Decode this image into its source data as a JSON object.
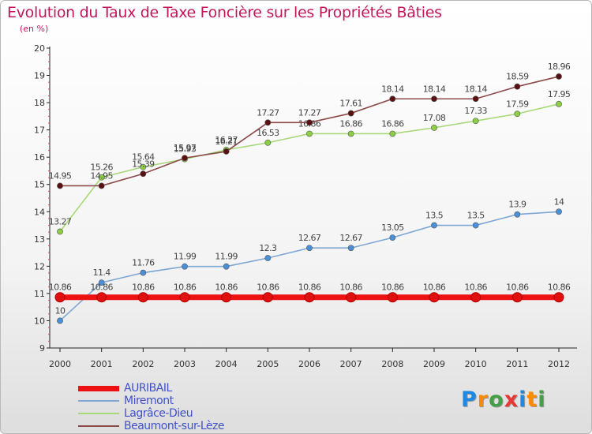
{
  "title": "Evolution du Taux de Taxe Foncière sur les Propriétés Bâties",
  "subtitle": "(en %)",
  "brand": {
    "letters": [
      "P",
      "r",
      "o",
      "x",
      "i",
      "t",
      "i"
    ],
    "colors": [
      "#1e88e5",
      "#fb8c00",
      "#43a047",
      "#e53935",
      "#1e88e5",
      "#fb8c00",
      "#43a047"
    ]
  },
  "chart_data": {
    "type": "line",
    "x": [
      2000,
      2001,
      2002,
      2003,
      2004,
      2005,
      2006,
      2007,
      2008,
      2009,
      2010,
      2011,
      2012
    ],
    "ylim": [
      9,
      20
    ],
    "yticks": [
      9,
      10,
      11,
      12,
      13,
      14,
      15,
      16,
      17,
      18,
      19,
      20
    ],
    "grid": false,
    "legend": "bottom-left",
    "series": [
      {
        "name": "AURIBAIL",
        "color": "#ee1111",
        "values": [
          10.86,
          10.86,
          10.86,
          10.86,
          10.86,
          10.86,
          10.86,
          10.86,
          10.86,
          10.86,
          10.86,
          10.86,
          10.86
        ],
        "labels": [
          "10.86",
          "10.86",
          "10.86",
          "10.86",
          "10.86",
          "10.86",
          "10.86",
          "10.86",
          "10.86",
          "10.86",
          "10.86",
          "10.86",
          "10.86"
        ]
      },
      {
        "name": "Miremont",
        "color": "#7ea6d4",
        "values": [
          10,
          11.4,
          11.76,
          11.99,
          11.99,
          12.3,
          12.67,
          12.67,
          13.05,
          13.5,
          13.5,
          13.9,
          14
        ],
        "labels": [
          "10",
          "11.4",
          "11.76",
          "11.99",
          "11.99",
          "12.3",
          "12.67",
          "12.67",
          "13.05",
          "13.5",
          "13.5",
          "13.9",
          "14"
        ]
      },
      {
        "name": "Lagrâce-Dieu",
        "color": "#a8d878",
        "values": [
          13.27,
          15.26,
          15.64,
          15.93,
          16.27,
          16.53,
          16.86,
          16.86,
          16.86,
          17.08,
          17.33,
          17.59,
          17.95
        ],
        "labels": [
          "13.27",
          "15.26",
          "15.64",
          "15.93",
          "16.27",
          "16.53",
          "16.86",
          "16.86",
          "16.86",
          "17.08",
          "17.33",
          "17.59",
          "17.95"
        ]
      },
      {
        "name": "Beaumont-sur-Lèze",
        "color": "#8c4a4a",
        "values": [
          14.95,
          14.95,
          15.39,
          15.97,
          16.21,
          17.27,
          17.27,
          17.61,
          18.14,
          18.14,
          18.14,
          18.59,
          18.96
        ],
        "labels": [
          "14.95",
          "14.95",
          "15.39",
          "15.97",
          "16.21",
          "17.27",
          "17.27",
          "17.61",
          "18.14",
          "18.14",
          "18.14",
          "18.59",
          "18.96"
        ]
      }
    ]
  }
}
